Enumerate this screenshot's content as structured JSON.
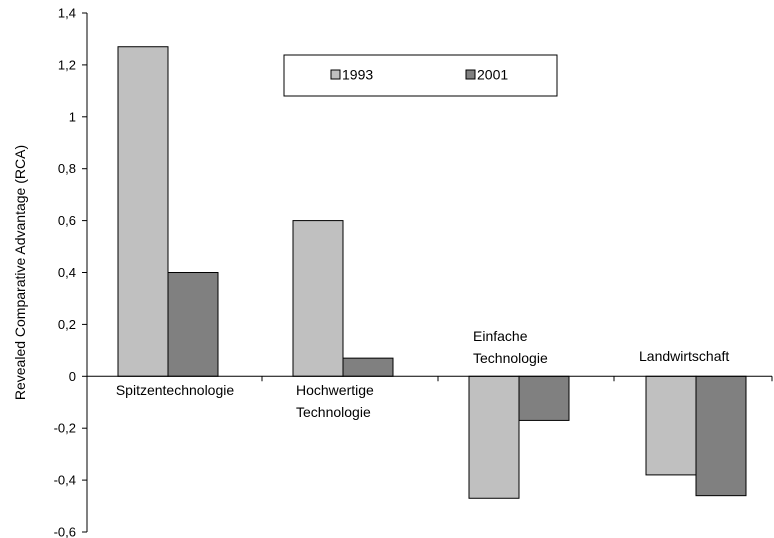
{
  "chart_data": {
    "type": "bar",
    "title": "",
    "xlabel": "",
    "ylabel": "Revealed Comparative Advantage (RCA)",
    "ylim": [
      -0.6,
      1.4
    ],
    "yticks": [
      "1,4",
      "1,2",
      "1",
      "0,8",
      "0,6",
      "0,4",
      "0,2",
      "0",
      "-0,2",
      "-0,4",
      "-0,6"
    ],
    "ytick_values": [
      1.4,
      1.2,
      1.0,
      0.8,
      0.6,
      0.4,
      0.2,
      0,
      -0.2,
      -0.4,
      -0.6
    ],
    "categories": [
      [
        "Spitzentechnologie"
      ],
      [
        "Hochwertige",
        "Technologie"
      ],
      [
        "Einfache",
        "Technologie"
      ],
      [
        "Landwirtschaft"
      ]
    ],
    "series": [
      {
        "name": "1993",
        "values": [
          1.27,
          0.6,
          -0.47,
          -0.38
        ],
        "color": "#c0c0c0"
      },
      {
        "name": "2001",
        "values": [
          0.4,
          0.07,
          -0.17,
          -0.46
        ],
        "color": "#808080"
      }
    ],
    "grid": false,
    "legend_position": "top-center"
  }
}
